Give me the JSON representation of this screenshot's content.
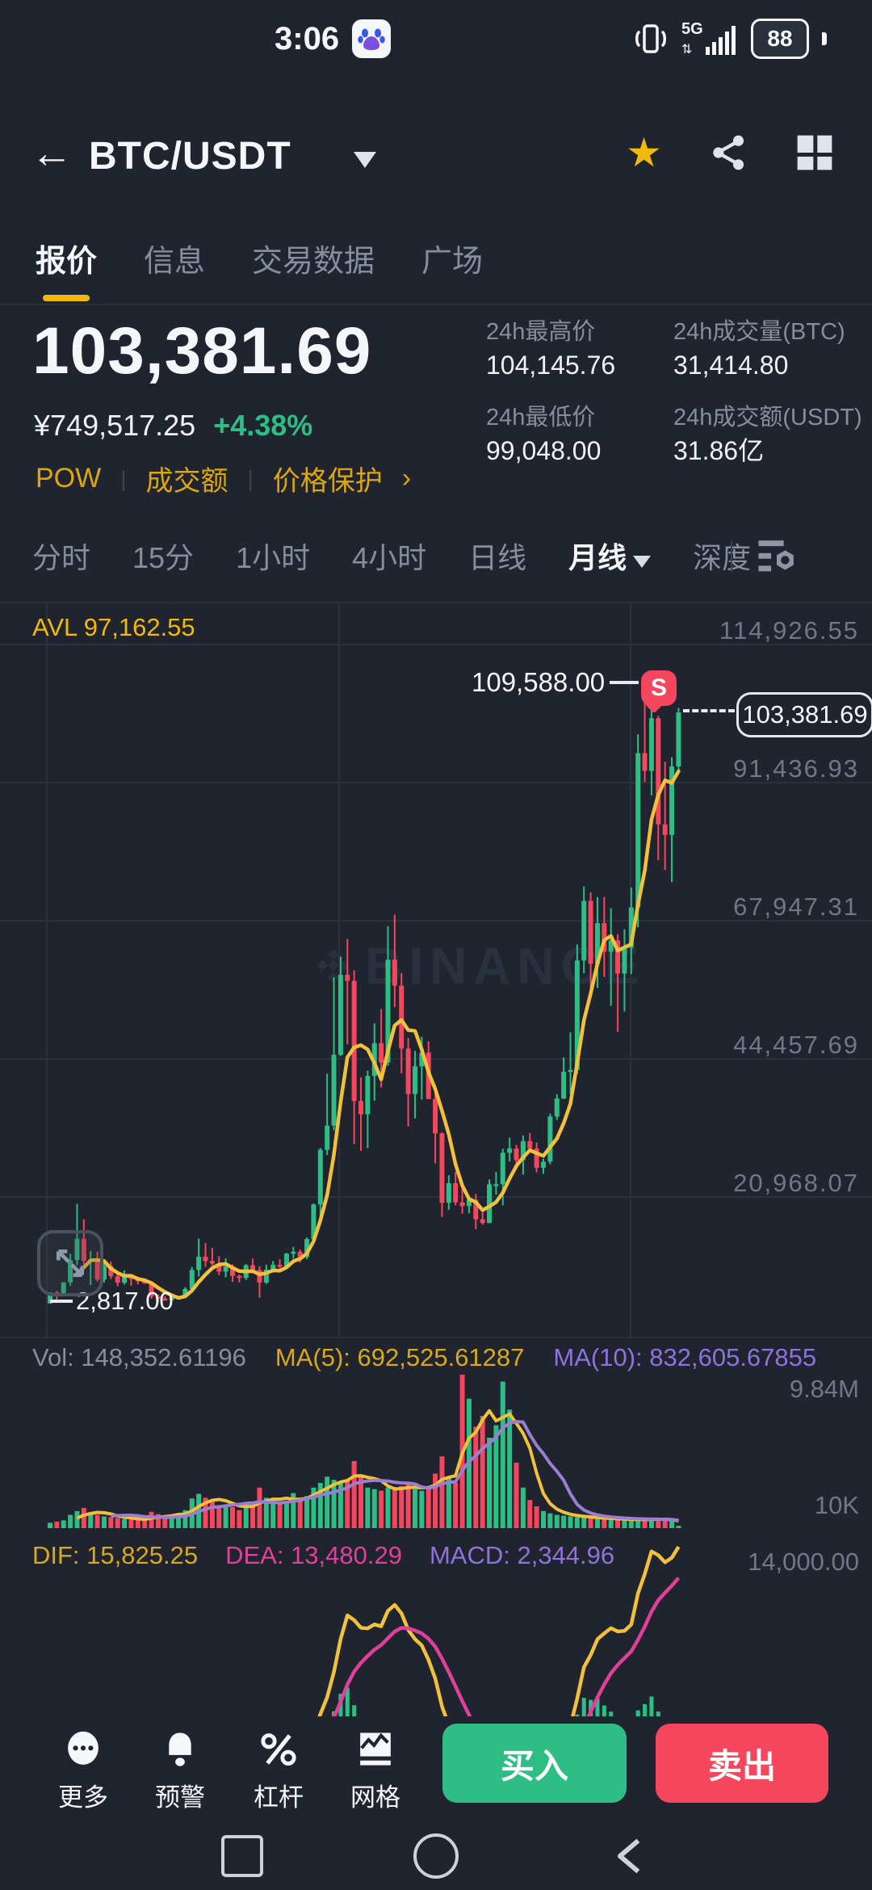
{
  "status_bar": {
    "time": "3:06",
    "network": "5G",
    "battery": "88"
  },
  "header": {
    "symbol": "BTC/USDT"
  },
  "tabs": {
    "items": [
      "报价",
      "信息",
      "交易数据",
      "广场"
    ]
  },
  "price": {
    "last": "103,381.69",
    "fiat": "¥749,517.25",
    "change": "+4.38%",
    "tag_pow": "POW",
    "tag_volume": "成交额",
    "tag_protect": "价格保护",
    "tag_arrow": "›"
  },
  "stats": {
    "high_label": "24h最高价",
    "high": "104,145.76",
    "volbtc_label": "24h成交量(BTC)",
    "volbtc": "31,414.80",
    "low_label": "24h最低价",
    "low": "99,048.00",
    "volusdt_label": "24h成交额(USDT)",
    "volusdt": "31.86亿"
  },
  "timeframes": {
    "items": [
      "分时",
      "15分",
      "1小时",
      "4小时",
      "日线",
      "月线",
      "深度"
    ],
    "active": "月线"
  },
  "chart": {
    "avl": "AVL 97,162.55",
    "price_axis": [
      "114,926.55",
      "91,436.93",
      "67,947.31",
      "44,457.69",
      "20,968.07"
    ],
    "high_annotation": "109,588.00",
    "order_badge": "S",
    "last_price_tag": "103,381.69",
    "low_annotation": "2,817.00",
    "watermark": "BINANCE"
  },
  "volume_pane": {
    "vol_label": "Vol: 148,352.61196",
    "ma5_label": "MA(5): 692,525.61287",
    "ma10_label": "MA(10): 832,605.67855",
    "max_label": "9.84M",
    "min_label": "10K"
  },
  "macd_pane": {
    "dif_label": "DIF: 15,825.25",
    "dea_label": "DEA: 13,480.29",
    "macd_label": "MACD: 2,344.96",
    "level_label": "14,000.00"
  },
  "actions": {
    "more": "更多",
    "alert": "预警",
    "leverage": "杠杆",
    "grid": "网格",
    "buy": "买入",
    "sell": "卖出"
  },
  "colors": {
    "up": "#2EBD85",
    "down": "#F6465D",
    "accent": "#F0B90B",
    "ma_price": "#F2C13C",
    "ma10_vol": "#9B7DD4",
    "dea": "#E0409A"
  },
  "chart_data": {
    "type": "candlestick",
    "timeframe": "monthly",
    "price_gridlines": [
      114926.55,
      91436.93,
      67947.31,
      44457.69,
      20968.07
    ],
    "candles": [
      [
        2875,
        4765,
        2817,
        4735
      ],
      [
        4735,
        4975,
        2980,
        4360
      ],
      [
        4360,
        6500,
        4110,
        6450
      ],
      [
        6450,
        11300,
        5880,
        10233
      ],
      [
        10233,
        19798,
        9380,
        13850
      ],
      [
        13850,
        17176,
        9035,
        10100
      ],
      [
        10100,
        11786,
        6000,
        10300
      ],
      [
        10300,
        11650,
        6600,
        6928
      ],
      [
        6928,
        9745,
        6425,
        9240
      ],
      [
        9240,
        9990,
        7032,
        7485
      ],
      [
        7485,
        7780,
        5780,
        6390
      ],
      [
        6390,
        8480,
        6070,
        7727
      ],
      [
        7727,
        7760,
        5880,
        7014
      ],
      [
        7014,
        7410,
        6100,
        6625
      ],
      [
        6625,
        6810,
        6200,
        6317
      ],
      [
        6317,
        6540,
        3652,
        4017
      ],
      [
        4017,
        4410,
        3122,
        3689
      ],
      [
        3689,
        4110,
        3350,
        3434
      ],
      [
        3434,
        4190,
        3349,
        3813
      ],
      [
        3813,
        4140,
        3657,
        4097
      ],
      [
        4097,
        5627,
        4055,
        5320
      ],
      [
        5320,
        9074,
        5206,
        8558
      ],
      [
        8558,
        13880,
        7432,
        10817
      ],
      [
        10817,
        13130,
        9071,
        10080
      ],
      [
        10080,
        12320,
        9321,
        9630
      ],
      [
        9630,
        10898,
        7714,
        8293
      ],
      [
        8293,
        10540,
        7293,
        9140
      ],
      [
        9140,
        9505,
        6515,
        7546
      ],
      [
        7546,
        7743,
        6435,
        7196
      ],
      [
        7196,
        9578,
        6853,
        9350
      ],
      [
        9350,
        10500,
        8407,
        8543
      ],
      [
        8543,
        9188,
        3850,
        6424
      ],
      [
        6424,
        9460,
        6160,
        8629
      ],
      [
        8629,
        10067,
        8112,
        9448
      ],
      [
        9448,
        10380,
        8830,
        9138
      ],
      [
        9138,
        11450,
        8900,
        11351
      ],
      [
        11351,
        12486,
        10519,
        11655
      ],
      [
        11655,
        12050,
        9825,
        10776
      ],
      [
        10776,
        14100,
        10374,
        13797
      ],
      [
        13797,
        19863,
        13195,
        19698
      ],
      [
        19698,
        29300,
        17572,
        28996
      ],
      [
        28996,
        41950,
        28130,
        33108
      ],
      [
        33108,
        58352,
        32296,
        45164
      ],
      [
        45164,
        61844,
        44950,
        58763
      ],
      [
        58763,
        64854,
        46930,
        57720
      ],
      [
        57720,
        59500,
        30000,
        37298
      ],
      [
        37298,
        41330,
        28805,
        35041
      ],
      [
        35041,
        42448,
        29278,
        41553
      ],
      [
        41553,
        50500,
        37332,
        47130
      ],
      [
        47130,
        52920,
        39600,
        43824
      ],
      [
        43824,
        67000,
        43283,
        61318
      ],
      [
        61318,
        69000,
        53256,
        56905
      ],
      [
        56905,
        59053,
        42000,
        46211
      ],
      [
        46211,
        47990,
        32950,
        38483
      ],
      [
        38483,
        45821,
        34322,
        43193
      ],
      [
        43193,
        48240,
        37555,
        45528
      ],
      [
        45528,
        47448,
        37585,
        37630
      ],
      [
        37630,
        40023,
        26700,
        31784
      ],
      [
        31784,
        31982,
        17593,
        19985
      ],
      [
        19985,
        24668,
        18781,
        23307
      ],
      [
        23307,
        25211,
        19520,
        20050
      ],
      [
        20050,
        22799,
        18125,
        19426
      ],
      [
        19426,
        21085,
        18190,
        20490
      ],
      [
        20490,
        21480,
        15476,
        17168
      ],
      [
        17168,
        18387,
        16256,
        16547
      ],
      [
        16547,
        23960,
        16499,
        23125
      ],
      [
        23125,
        25250,
        21351,
        23147
      ],
      [
        23147,
        29184,
        19549,
        28478
      ],
      [
        28478,
        31059,
        27000,
        29233
      ],
      [
        29233,
        29820,
        25810,
        27210
      ],
      [
        27210,
        31431,
        24797,
        30472
      ],
      [
        30472,
        31862,
        28855,
        29230
      ],
      [
        29230,
        30242,
        25166,
        25940
      ],
      [
        25940,
        27483,
        24900,
        26962
      ],
      [
        26962,
        35150,
        26538,
        34657
      ],
      [
        34657,
        38450,
        34080,
        37712
      ],
      [
        37712,
        44700,
        37615,
        42265
      ],
      [
        42265,
        48969,
        38501,
        42580
      ],
      [
        42580,
        63933,
        41884,
        61198
      ],
      [
        61198,
        73777,
        59005,
        71333
      ],
      [
        71333,
        72797,
        56500,
        60636
      ],
      [
        60636,
        71979,
        56552,
        67540
      ],
      [
        67540,
        71997,
        58402,
        62678
      ],
      [
        62678,
        70079,
        53485,
        64619
      ],
      [
        64619,
        65659,
        49050,
        58970
      ],
      [
        58970,
        66500,
        52530,
        63330
      ],
      [
        63330,
        73620,
        58895,
        70215
      ],
      [
        70215,
        99655,
        66835,
        96449
      ],
      [
        96449,
        108388,
        91530,
        93429
      ],
      [
        93429,
        109588,
        89256,
        102400
      ],
      [
        102400,
        102800,
        78258,
        84350
      ],
      [
        84350,
        95000,
        76606,
        82550
      ],
      [
        82550,
        95768,
        74508,
        94200
      ],
      [
        94200,
        104145.76,
        93300,
        103381.69
      ]
    ],
    "volumes_m": [
      0.35,
      0.42,
      0.5,
      0.85,
      1.1,
      1.3,
      0.95,
      0.85,
      0.75,
      0.7,
      0.65,
      0.6,
      0.55,
      0.52,
      0.5,
      1.05,
      0.9,
      0.75,
      0.8,
      0.9,
      1.15,
      1.9,
      2.2,
      1.95,
      1.75,
      1.4,
      1.5,
      1.35,
      1.15,
      1.55,
      1.45,
      2.6,
      1.95,
      1.75,
      1.55,
      1.75,
      2.25,
      1.95,
      2.05,
      2.6,
      2.9,
      3.3,
      3.1,
      2.9,
      3.1,
      4.3,
      3.4,
      2.6,
      2.5,
      2.4,
      2.6,
      2.5,
      2.7,
      2.8,
      2.5,
      2.4,
      2.6,
      3.5,
      4.6,
      3.2,
      2.9,
      9.84,
      8.3,
      6.5,
      7.2,
      5.8,
      6.6,
      9.4,
      7.6,
      4.2,
      2.6,
      1.8,
      1.4,
      1.1,
      0.95,
      0.85,
      0.8,
      0.75,
      0.7,
      0.68,
      0.65,
      0.62,
      0.6,
      0.58,
      0.56,
      0.54,
      0.52,
      0.55,
      0.58,
      0.62,
      0.58,
      0.52,
      0.45,
      0.15
    ]
  }
}
